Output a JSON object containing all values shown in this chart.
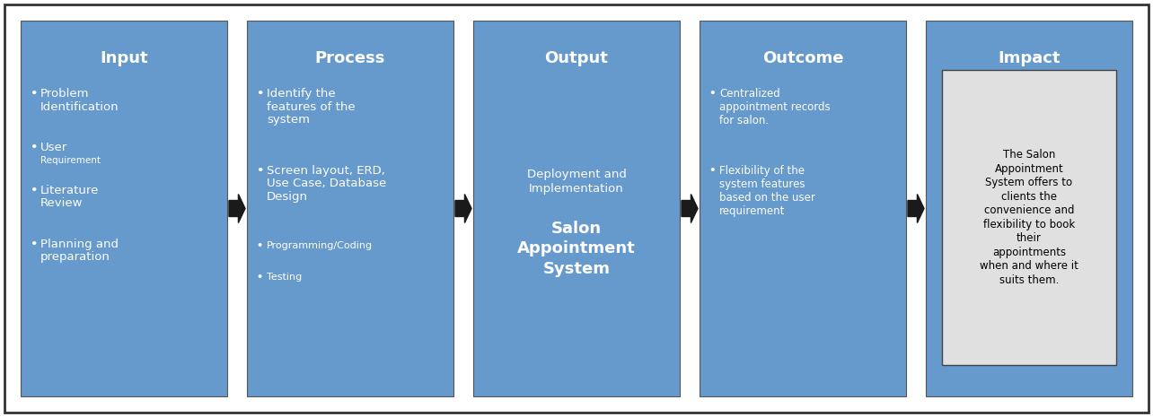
{
  "bg_color": "#ffffff",
  "box_color": "#6699CC",
  "box_edge_color": "#555555",
  "outer_border_color": "#333333",
  "arrow_color": "#1a1a1a",
  "title_color": "#ffffff",
  "text_color": "#ffffff",
  "boxes": [
    {
      "title": "Input",
      "content_type": "input"
    },
    {
      "title": "Process",
      "content_type": "process"
    },
    {
      "title": "Output",
      "content_type": "output"
    },
    {
      "title": "Outcome",
      "content_type": "outcome"
    },
    {
      "title": "Impact",
      "content_type": "impact"
    }
  ],
  "fig_w": 12.84,
  "fig_h": 4.65
}
